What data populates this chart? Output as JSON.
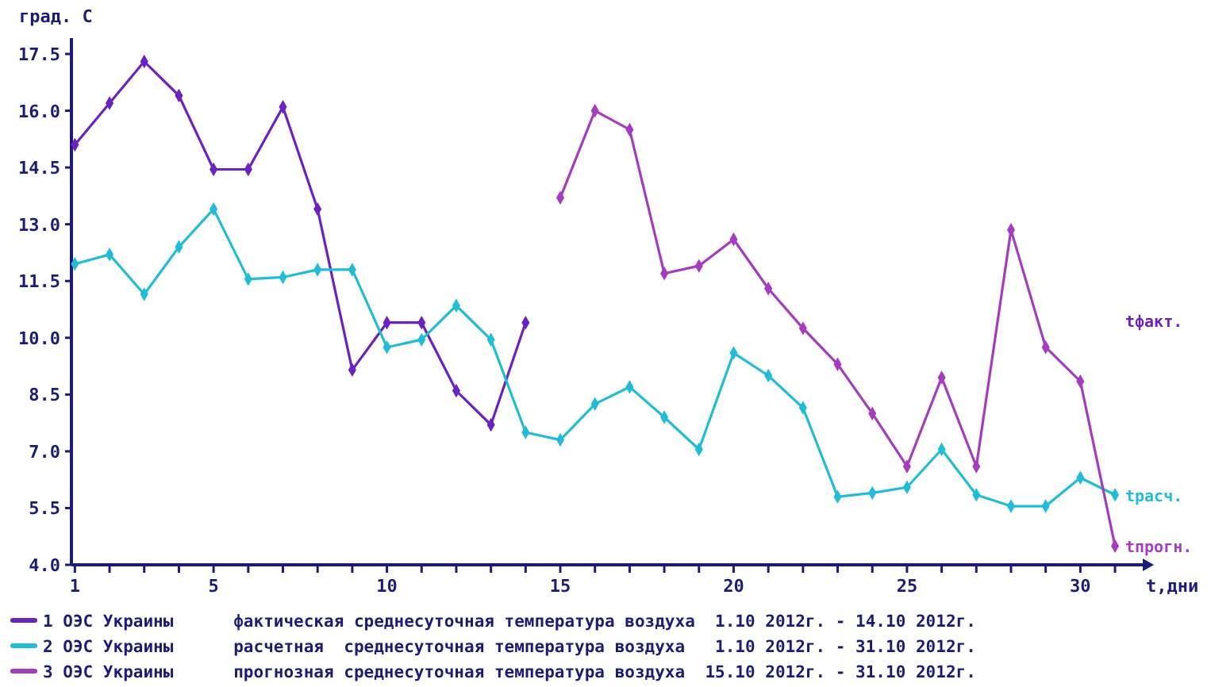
{
  "chart_data": {
    "type": "line",
    "ylabel": "град. С",
    "xlabel": "t,дни",
    "xlim": [
      0.9,
      31.8
    ],
    "ylim": [
      4,
      17.92
    ],
    "xticks": [
      1,
      {
        "value": 2,
        "label": null
      },
      {
        "value": 3,
        "label": null
      },
      {
        "value": 4,
        "label": null
      },
      5,
      {
        "value": 6,
        "label": null
      },
      {
        "value": 7,
        "label": null
      },
      {
        "value": 8,
        "label": null
      },
      {
        "value": 9,
        "label": null
      },
      10,
      {
        "value": 11,
        "label": null
      },
      {
        "value": 12,
        "label": null
      },
      {
        "value": 13,
        "label": null
      },
      {
        "value": 14,
        "label": null
      },
      15,
      {
        "value": 16,
        "label": null
      },
      {
        "value": 17,
        "label": null
      },
      {
        "value": 18,
        "label": null
      },
      {
        "value": 19,
        "label": null
      },
      20,
      {
        "value": 21,
        "label": null
      },
      {
        "value": 22,
        "label": null
      },
      {
        "value": 23,
        "label": null
      },
      {
        "value": 24,
        "label": null
      },
      25,
      {
        "value": 26,
        "label": null
      },
      {
        "value": 27,
        "label": null
      },
      {
        "value": 28,
        "label": null
      },
      {
        "value": 29,
        "label": null
      },
      30,
      {
        "value": 31,
        "label": null
      }
    ],
    "yticks": [
      {
        "value": 4,
        "label": "4.0"
      },
      {
        "value": 5.5,
        "label": "5.5"
      },
      {
        "value": 7,
        "label": "7.0"
      },
      {
        "value": 8.5,
        "label": "8.5"
      },
      {
        "value": 10,
        "label": "10.0"
      },
      {
        "value": 11.5,
        "label": "11.5"
      },
      {
        "value": 13,
        "label": "13.0"
      },
      {
        "value": 14.5,
        "label": "14.5"
      },
      {
        "value": 16,
        "label": "16.0"
      },
      {
        "value": 17.5,
        "label": "17.5"
      }
    ],
    "grid": false,
    "legend": "bottom",
    "marker": "diamond",
    "line_style": "solid",
    "series": [
      {
        "name": "1 ОЭС Украины      фактическая среднесуточная температура воздуха  1.10 2012г. - 14.10 2012г.",
        "color": "#6a22c0",
        "x": [
          1,
          2,
          3,
          4,
          5,
          6,
          7,
          8,
          9,
          10,
          11,
          12,
          13,
          14
        ],
        "values": [
          15.1,
          16.2,
          17.3,
          16.4,
          14.45,
          14.45,
          16.1,
          13.4,
          9.15,
          10.4,
          10.4,
          8.6,
          7.7,
          10.4
        ]
      },
      {
        "name": "2 ОЭС Украины      расчетная  среднесуточная температура воздуха   1.10 2012г. - 31.10 2012г.",
        "color": "#22bcd6",
        "x": [
          1,
          2,
          3,
          4,
          5,
          6,
          7,
          8,
          9,
          10,
          11,
          12,
          13,
          14,
          15,
          16,
          17,
          18,
          19,
          20,
          21,
          22,
          23,
          24,
          25,
          26,
          27,
          28,
          29,
          30,
          31
        ],
        "values": [
          11.95,
          12.2,
          11.15,
          12.4,
          13.4,
          11.55,
          11.6,
          11.8,
          11.8,
          9.75,
          9.95,
          10.85,
          9.95,
          7.5,
          7.3,
          8.25,
          8.7,
          7.9,
          7.05,
          9.6,
          9.0,
          8.15,
          5.8,
          5.9,
          6.05,
          7.05,
          5.85,
          5.55,
          5.55,
          6.3,
          5.85
        ]
      },
      {
        "name": "3 ОЭС Украины      прогнозная среднесуточная температура воздуха  15.10 2012г. - 31.10 2012г.",
        "color": "#a53cc0",
        "x": [
          15,
          16,
          17,
          18,
          19,
          20,
          21,
          22,
          23,
          24,
          25,
          26,
          27,
          28,
          29,
          30,
          31
        ],
        "values": [
          13.7,
          16.0,
          15.5,
          11.7,
          11.9,
          12.6,
          11.3,
          10.25,
          9.3,
          8.0,
          6.6,
          8.95,
          6.6,
          12.85,
          9.75,
          8.85,
          4.5
        ]
      }
    ],
    "annotations": [
      "tфакт.",
      "tрасч.",
      "tпрогн."
    ]
  }
}
